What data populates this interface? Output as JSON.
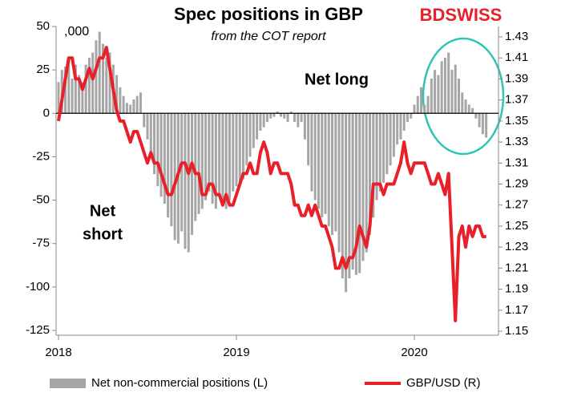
{
  "chart_data": {
    "type": "bar_line",
    "title": "Spec positions in GBP",
    "subtitle": "from the COT report",
    "logo": "BDSWISS",
    "annotations": {
      "units": ",000",
      "net_long": "Net long",
      "net_short": [
        "Net",
        "short"
      ]
    },
    "categories": [
      "2018",
      null,
      null,
      null,
      null,
      null,
      null,
      null,
      null,
      null,
      null,
      null,
      null,
      null,
      null,
      null,
      null,
      null,
      null,
      null,
      null,
      null,
      null,
      null,
      null,
      null,
      null,
      null,
      null,
      null,
      null,
      null,
      null,
      null,
      null,
      null,
      null,
      null,
      null,
      null,
      null,
      null,
      null,
      null,
      null,
      null,
      null,
      null,
      null,
      null,
      null,
      null,
      "2019",
      null,
      null,
      null,
      null,
      null,
      null,
      null,
      null,
      null,
      null,
      null,
      null,
      null,
      null,
      null,
      null,
      null,
      null,
      null,
      null,
      null,
      null,
      null,
      null,
      null,
      null,
      null,
      null,
      null,
      null,
      null,
      null,
      null,
      null,
      null,
      null,
      null,
      null,
      null,
      null,
      null,
      null,
      null,
      null,
      null,
      null,
      null,
      null,
      null,
      null,
      null,
      "2020",
      null,
      null,
      null,
      null,
      null,
      null,
      null,
      null,
      null,
      null,
      null,
      null,
      null,
      null,
      null,
      null,
      null,
      null,
      null,
      null,
      null
    ],
    "series": [
      {
        "name": "Net non-commercial positions (L)",
        "kind": "bar",
        "color": "#a6a6a6",
        "values": [
          18,
          25,
          27,
          30,
          20,
          28,
          22,
          18,
          28,
          32,
          35,
          42,
          47,
          40,
          32,
          35,
          28,
          22,
          15,
          10,
          6,
          5,
          8,
          10,
          12,
          -8,
          -15,
          -25,
          -35,
          -42,
          -48,
          -52,
          -60,
          -65,
          -73,
          -75,
          -68,
          -78,
          -80,
          -70,
          -62,
          -58,
          -55,
          -50,
          -45,
          -52,
          -55,
          -48,
          -50,
          -55,
          -50,
          -45,
          -42,
          -40,
          -38,
          -30,
          -25,
          -20,
          -15,
          -10,
          -8,
          -5,
          -3,
          -2,
          1,
          -2,
          -3,
          -5,
          1,
          -5,
          -8,
          -5,
          -15,
          -30,
          -45,
          -50,
          -55,
          -60,
          -58,
          -65,
          -70,
          -68,
          -80,
          -95,
          -103,
          -95,
          -90,
          -93,
          -92,
          -85,
          -80,
          -70,
          -60,
          -50,
          -45,
          -40,
          -35,
          -30,
          -25,
          -18,
          -15,
          -10,
          -5,
          -3,
          5,
          10,
          15,
          5,
          10,
          20,
          25,
          22,
          30,
          32,
          35,
          25,
          28,
          20,
          12,
          8,
          5,
          3,
          -3,
          -8,
          -12,
          -14
        ]
      },
      {
        "name": "GBP/USD (R)",
        "kind": "line",
        "axis": "y2",
        "color": "#e8202a",
        "values": [
          1.35,
          1.37,
          1.39,
          1.41,
          1.41,
          1.39,
          1.39,
          1.38,
          1.39,
          1.4,
          1.39,
          1.4,
          1.41,
          1.41,
          1.42,
          1.4,
          1.38,
          1.36,
          1.35,
          1.35,
          1.34,
          1.33,
          1.34,
          1.34,
          1.33,
          1.32,
          1.31,
          1.32,
          1.31,
          1.31,
          1.3,
          1.29,
          1.28,
          1.28,
          1.29,
          1.3,
          1.31,
          1.31,
          1.3,
          1.31,
          1.3,
          1.3,
          1.28,
          1.28,
          1.29,
          1.29,
          1.28,
          1.28,
          1.27,
          1.28,
          1.27,
          1.27,
          1.28,
          1.29,
          1.3,
          1.3,
          1.31,
          1.3,
          1.3,
          1.32,
          1.33,
          1.32,
          1.3,
          1.31,
          1.31,
          1.3,
          1.3,
          1.3,
          1.29,
          1.27,
          1.27,
          1.26,
          1.26,
          1.27,
          1.26,
          1.27,
          1.26,
          1.25,
          1.25,
          1.24,
          1.23,
          1.21,
          1.21,
          1.22,
          1.21,
          1.22,
          1.22,
          1.23,
          1.25,
          1.24,
          1.23,
          1.25,
          1.29,
          1.29,
          1.29,
          1.28,
          1.29,
          1.29,
          1.29,
          1.3,
          1.31,
          1.33,
          1.31,
          1.3,
          1.31,
          1.31,
          1.31,
          1.31,
          1.3,
          1.29,
          1.29,
          1.3,
          1.29,
          1.28,
          1.3,
          1.23,
          1.16,
          1.24,
          1.25,
          1.23,
          1.25,
          1.24,
          1.25,
          1.25,
          1.24,
          1.24
        ]
      }
    ],
    "ylim": [
      -125,
      50
    ],
    "yticks": [
      50,
      25,
      0,
      -25,
      -50,
      -75,
      -100,
      -125
    ],
    "y2lim": [
      1.15,
      1.43
    ],
    "y2ticks": [
      1.43,
      1.41,
      1.39,
      1.37,
      1.35,
      1.33,
      1.31,
      1.29,
      1.27,
      1.25,
      1.23,
      1.21,
      1.19,
      1.17,
      1.15
    ]
  }
}
